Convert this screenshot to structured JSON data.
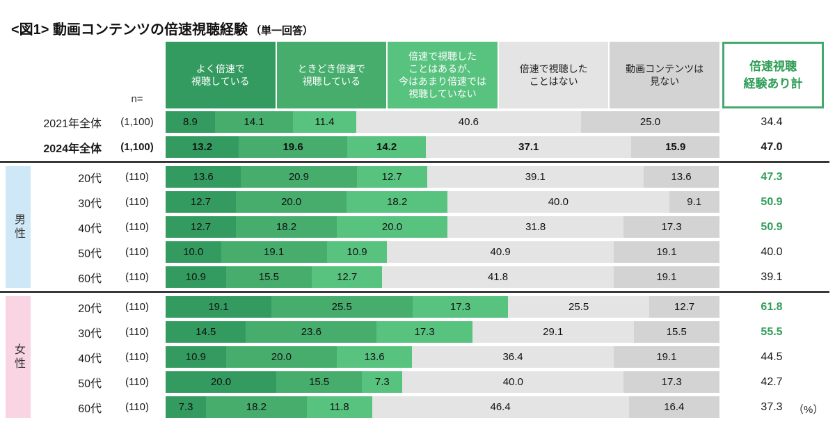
{
  "title": {
    "main": "<図1> 動画コンテンツの倍速視聴経験",
    "suffix": "（単一回答）"
  },
  "n_label": "n=",
  "percent_note": "（%）",
  "total_header": "倍速視聴\n経験あり計",
  "groups": {
    "male": "男性",
    "female": "女性"
  },
  "colors": {
    "accent": "#2f9e56",
    "total_box_border": "#45a96e",
    "male_bg": "#cfe8f7",
    "female_bg": "#f9d4e3",
    "divider": "#000000"
  },
  "chart_data": {
    "type": "bar",
    "stacked": true,
    "orientation": "horizontal",
    "unit": "%",
    "xlim": [
      0,
      100
    ],
    "legend_position": "top",
    "title": "動画コンテンツの倍速視聴経験（単一回答）",
    "categories": [
      "よく倍速で視聴している",
      "ときどき倍速で視聴している",
      "倍速で視聴したことはあるが、今はあまり倍速では視聴していない",
      "倍速で視聴したことはない",
      "動画コンテンツは見ない"
    ],
    "category_labels": [
      "よく倍速で\n視聴している",
      "ときどき倍速で\n視聴している",
      "倍速で視聴した\nことはあるが、\n今はあまり倍速では\n視聴していない",
      "倍速で視聴した\nことはない",
      "動画コンテンツは\n見ない"
    ],
    "category_colors": [
      "#339b5f",
      "#46ad6d",
      "#58c27f",
      "#e4e4e4",
      "#d3d3d3"
    ],
    "category_text_colors": [
      "#ffffff",
      "#ffffff",
      "#ffffff",
      "#222222",
      "#222222"
    ],
    "total_column_label": "倍速視聴経験あり計",
    "rows": [
      {
        "group": "",
        "label": "2021年全体",
        "n": "(1,100)",
        "values": [
          8.9,
          14.1,
          11.4,
          40.6,
          25.0
        ],
        "total": 34.4,
        "emphasis": "normal",
        "total_style": "normal"
      },
      {
        "group": "",
        "label": "2024年全体",
        "n": "(1,100)",
        "values": [
          13.2,
          19.6,
          14.2,
          37.1,
          15.9
        ],
        "total": 47.0,
        "emphasis": "bold",
        "total_style": "bold",
        "divider_after": true
      },
      {
        "group": "男性",
        "label": "20代",
        "n": "(110)",
        "values": [
          13.6,
          20.9,
          12.7,
          39.1,
          13.6
        ],
        "total": 47.3,
        "emphasis": "normal",
        "total_style": "green"
      },
      {
        "group": "男性",
        "label": "30代",
        "n": "(110)",
        "values": [
          12.7,
          20.0,
          18.2,
          40.0,
          9.1
        ],
        "total": 50.9,
        "emphasis": "normal",
        "total_style": "green"
      },
      {
        "group": "男性",
        "label": "40代",
        "n": "(110)",
        "values": [
          12.7,
          18.2,
          20.0,
          31.8,
          17.3
        ],
        "total": 50.9,
        "emphasis": "normal",
        "total_style": "green"
      },
      {
        "group": "男性",
        "label": "50代",
        "n": "(110)",
        "values": [
          10.0,
          19.1,
          10.9,
          40.9,
          19.1
        ],
        "total": 40.0,
        "emphasis": "normal",
        "total_style": "normal"
      },
      {
        "group": "男性",
        "label": "60代",
        "n": "(110)",
        "values": [
          10.9,
          15.5,
          12.7,
          41.8,
          19.1
        ],
        "total": 39.1,
        "emphasis": "normal",
        "total_style": "normal",
        "divider_after": true
      },
      {
        "group": "女性",
        "label": "20代",
        "n": "(110)",
        "values": [
          19.1,
          25.5,
          17.3,
          25.5,
          12.7
        ],
        "total": 61.8,
        "emphasis": "normal",
        "total_style": "green"
      },
      {
        "group": "女性",
        "label": "30代",
        "n": "(110)",
        "values": [
          14.5,
          23.6,
          17.3,
          29.1,
          15.5
        ],
        "total": 55.5,
        "emphasis": "normal",
        "total_style": "green"
      },
      {
        "group": "女性",
        "label": "40代",
        "n": "(110)",
        "values": [
          10.9,
          20.0,
          13.6,
          36.4,
          19.1
        ],
        "total": 44.5,
        "emphasis": "normal",
        "total_style": "normal"
      },
      {
        "group": "女性",
        "label": "50代",
        "n": "(110)",
        "values": [
          20.0,
          15.5,
          7.3,
          40.0,
          17.3
        ],
        "total": 42.7,
        "emphasis": "normal",
        "total_style": "normal"
      },
      {
        "group": "女性",
        "label": "60代",
        "n": "(110)",
        "values": [
          7.3,
          18.2,
          11.8,
          46.4,
          16.4
        ],
        "total": 37.3,
        "emphasis": "normal",
        "total_style": "normal"
      }
    ]
  }
}
